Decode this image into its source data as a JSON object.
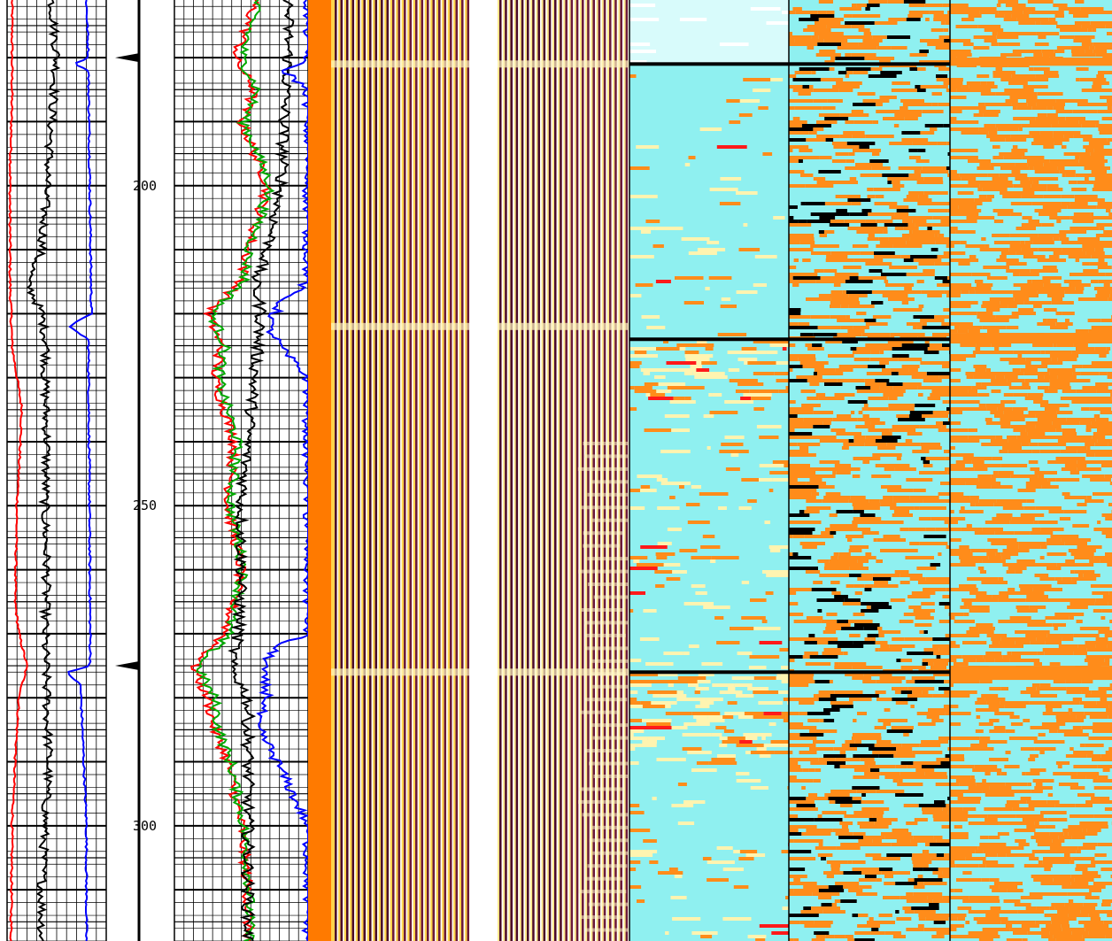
{
  "chart_data": {
    "type": "line",
    "title": "",
    "depth_axis": {
      "label": "",
      "range": [
        171,
        318
      ],
      "ticks": [
        200,
        250,
        300
      ],
      "tick_labels": [
        "200",
        "250",
        "300"
      ],
      "coupling_markers": [
        180,
        275
      ]
    },
    "tracks": [
      {
        "id": "track1",
        "grid": true,
        "series": [
          {
            "color": "#ff0000",
            "kind": "gamma",
            "depths": [
              171,
              185,
              200,
              215,
              225,
              235,
              250,
              265,
              270,
              275,
              280,
              290,
              300,
              318
            ],
            "values": [
              0.05,
              0.05,
              0.03,
              0.03,
              0.05,
              0.15,
              0.1,
              0.08,
              0.12,
              0.2,
              0.12,
              0.08,
              0.05,
              0.04
            ]
          },
          {
            "color": "#000000",
            "kind": "caliper",
            "depths": [
              171,
              180,
              190,
              200,
              210,
              215,
              220,
              225,
              230,
              240,
              250,
              260,
              270,
              280,
              290,
              300,
              310,
              318
            ],
            "values": [
              0.45,
              0.5,
              0.45,
              0.4,
              0.35,
              0.2,
              0.35,
              0.4,
              0.38,
              0.4,
              0.38,
              0.4,
              0.38,
              0.4,
              0.42,
              0.38,
              0.35,
              0.35
            ]
          },
          {
            "color": "#0000ff",
            "kind": "deviation",
            "depths": [
              171,
              180,
              181,
              182,
              220,
              222,
              224,
              275,
              276,
              278,
              285,
              300,
              318
            ],
            "values": [
              0.8,
              0.82,
              0.68,
              0.82,
              0.85,
              0.62,
              0.82,
              0.84,
              0.6,
              0.74,
              0.76,
              0.8,
              0.8
            ]
          }
        ]
      },
      {
        "id": "track2",
        "grid": true,
        "series": [
          {
            "color": "#ff0000",
            "kind": "travel-time-a",
            "depths": [
              171,
              175,
              180,
              185,
              190,
              200,
              210,
              215,
              220,
              225,
              230,
              240,
              250,
              260,
              270,
              275,
              278,
              280,
              285,
              290,
              300,
              310,
              318
            ],
            "values": [
              0.6,
              0.55,
              0.45,
              0.6,
              0.5,
              0.7,
              0.55,
              0.5,
              0.25,
              0.35,
              0.3,
              0.45,
              0.4,
              0.5,
              0.38,
              0.15,
              0.2,
              0.25,
              0.3,
              0.4,
              0.5,
              0.55,
              0.55
            ]
          },
          {
            "color": "#00aa00",
            "kind": "travel-time-b",
            "depths": [
              171,
              175,
              180,
              185,
              190,
              200,
              210,
              215,
              220,
              225,
              230,
              240,
              250,
              260,
              270,
              275,
              278,
              280,
              285,
              290,
              300,
              310,
              318
            ],
            "values": [
              0.62,
              0.57,
              0.5,
              0.62,
              0.52,
              0.72,
              0.56,
              0.52,
              0.28,
              0.38,
              0.33,
              0.47,
              0.42,
              0.52,
              0.4,
              0.18,
              0.24,
              0.3,
              0.33,
              0.42,
              0.52,
              0.56,
              0.56
            ]
          },
          {
            "color": "#000000",
            "kind": "amplitude",
            "depths": [
              171,
              180,
              190,
              200,
              210,
              215,
              220,
              230,
              240,
              250,
              260,
              270,
              275,
              280,
              290,
              300,
              318
            ],
            "values": [
              0.85,
              0.85,
              0.82,
              0.8,
              0.7,
              0.6,
              0.65,
              0.6,
              0.55,
              0.5,
              0.5,
              0.48,
              0.42,
              0.55,
              0.55,
              0.55,
              0.55
            ]
          },
          {
            "color": "#0000ff",
            "kind": "cbl",
            "depths": [
              171,
              180,
              182,
              185,
              215,
              218,
              222,
              226,
              230,
              270,
              272,
              276,
              280,
              284,
              288,
              300,
              318
            ],
            "values": [
              1.0,
              1.0,
              0.82,
              1.0,
              1.0,
              0.8,
              0.7,
              0.82,
              1.0,
              1.0,
              0.75,
              0.65,
              0.7,
              0.6,
              0.72,
              1.0,
              1.0
            ]
          }
        ]
      },
      {
        "id": "track3",
        "type": "waveform-vdl"
      },
      {
        "id": "track4",
        "type": "waveform-vdl"
      },
      {
        "id": "track5",
        "type": "heatmap",
        "colors": [
          "#8ff0f0",
          "#ff8c1a",
          "#000000",
          "#fff4b0",
          "#ff1a1a"
        ],
        "events": [
          181,
          224,
          276,
          283
        ]
      },
      {
        "id": "track6",
        "type": "heatmap",
        "colors": [
          "#8ff0f0",
          "#ff8c1a",
          "#000000"
        ],
        "events": [
          181,
          224,
          276
        ]
      },
      {
        "id": "track7",
        "type": "heatmap",
        "colors": [
          "#8ff0f0",
          "#ff8c1a"
        ],
        "events": [
          181,
          224,
          276
        ]
      }
    ]
  }
}
